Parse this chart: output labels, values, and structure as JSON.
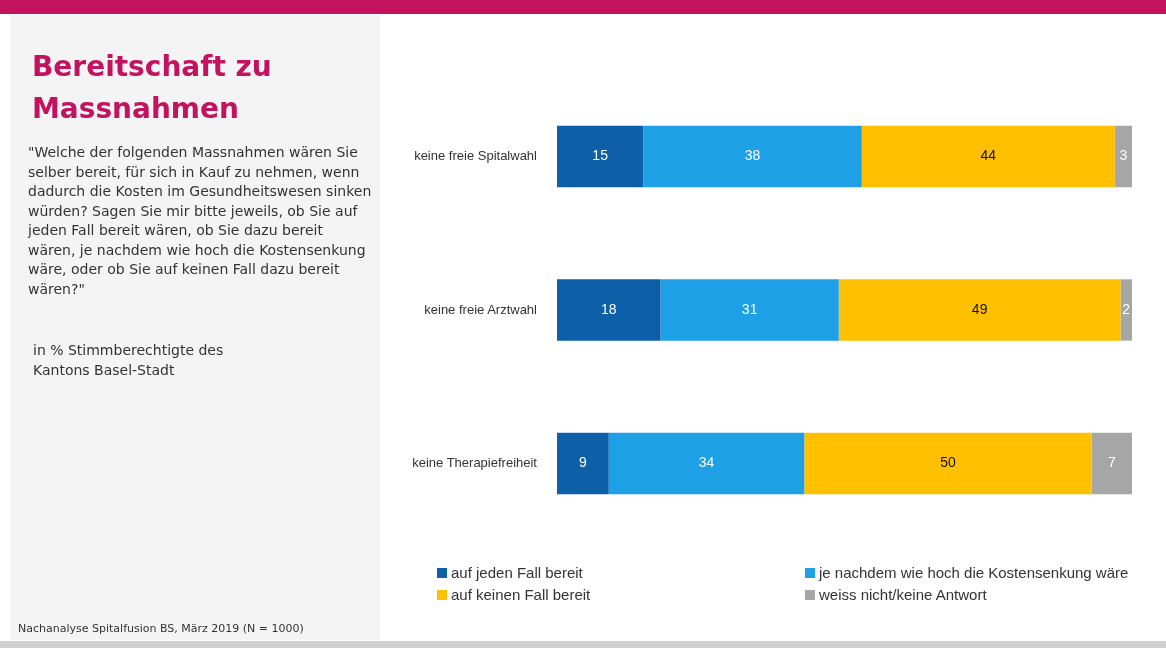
{
  "chart_data": {
    "type": "bar",
    "orientation": "horizontal",
    "stacked": true,
    "data_labels": true,
    "legend": "bottom",
    "title": "Bereitschaft zu Massnahmen",
    "subtitle": "\"Welche der folgenden Massnahmen wären Sie selber bereit, für sich in Kauf zu nehmen, wenn dadurch die Kosten im Gesundheitswesen sinken würden? Sagen Sie mir bitte jeweils, ob Sie auf jeden Fall bereit wären, ob Sie dazu bereit wären, je nachdem wie hoch die Kostensenkung wäre, oder ob Sie auf keinen Fall dazu bereit wären?\"",
    "annotations": [
      "in % Stimmberechtigte des Kantons Basel-Stadt",
      "Nachanalyse Spitalfusion BS, März 2019 (N = 1000)"
    ],
    "categories": [
      "keine freie Spitalwahl",
      "keine freie Arztwahl",
      "keine Therapiefreiheit"
    ],
    "series": [
      {
        "name": "auf jeden Fall bereit",
        "color": "#0d5fa8",
        "values": [
          15,
          18,
          9
        ]
      },
      {
        "name": "je nachdem wie hoch die Kostensenkung wäre",
        "color": "#1ea0e6",
        "values": [
          38,
          31,
          34
        ]
      },
      {
        "name": "auf keinen Fall bereit",
        "color": "#ffc000",
        "values": [
          44,
          49,
          50
        ]
      },
      {
        "name": "weiss nicht/keine Antwort",
        "color": "#a6a6a6",
        "values": [
          3,
          2,
          7
        ]
      }
    ]
  }
}
